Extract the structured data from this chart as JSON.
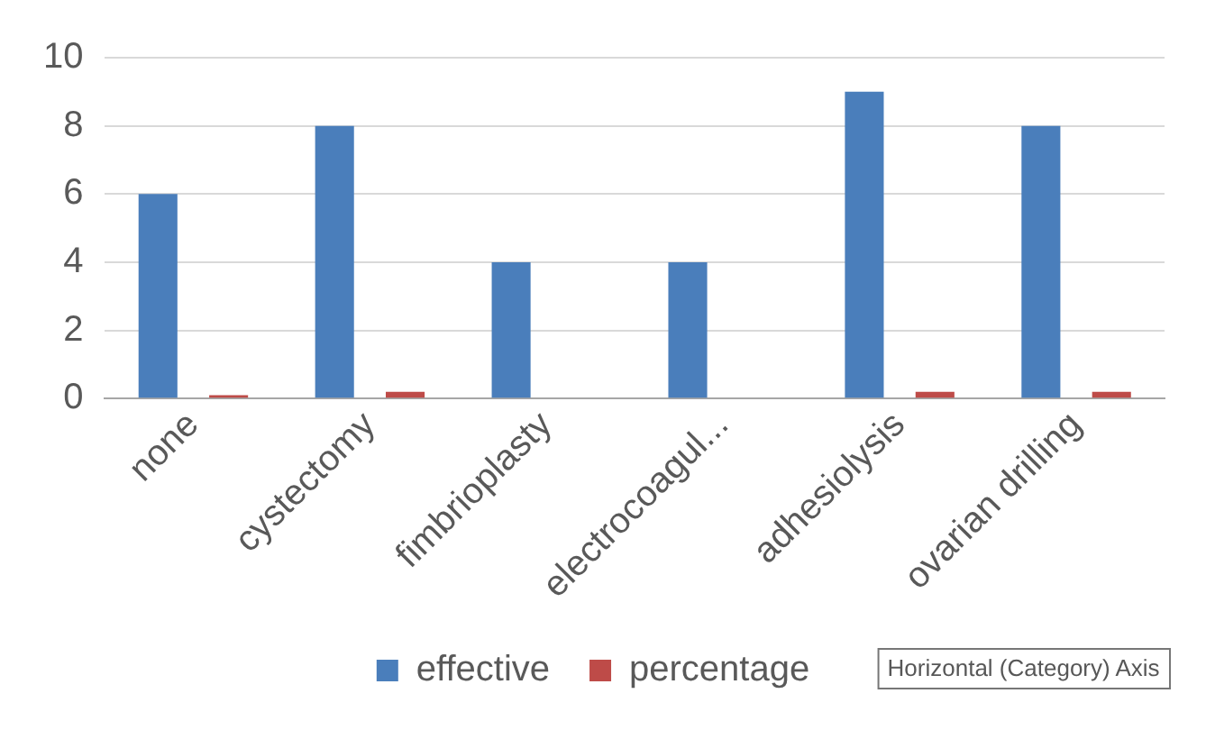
{
  "chart_data": {
    "type": "bar",
    "categories": [
      "none",
      "cystectomy",
      "fimbrioplasty",
      "electrocoagul...",
      "adhesiolysis",
      "ovarian drilling"
    ],
    "series": [
      {
        "name": "effective",
        "color": "#4a7ebb",
        "values": [
          6,
          8,
          4,
          4,
          9,
          8
        ]
      },
      {
        "name": "percentage",
        "color": "#be4b48",
        "values": [
          0.1,
          0.2,
          0,
          0,
          0.2,
          0.2
        ]
      }
    ],
    "ylim": [
      0,
      10
    ],
    "yticks": [
      0,
      2,
      4,
      6,
      8,
      10
    ],
    "grid": "y",
    "legend": "bottom",
    "annotations": [
      "Horizontal (Category) Axis"
    ]
  }
}
